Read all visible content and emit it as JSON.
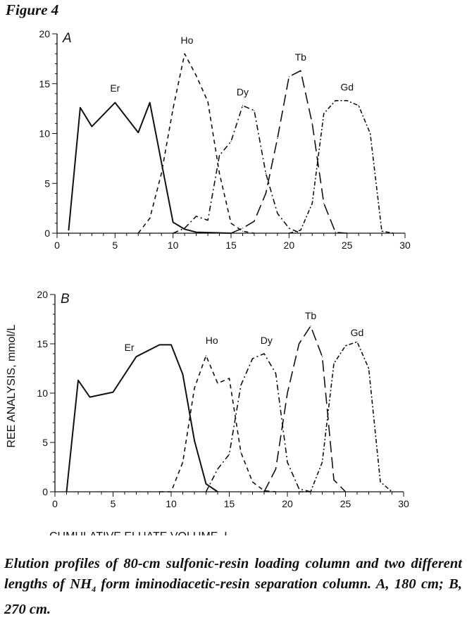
{
  "figure_title": "Figure 4",
  "caption": {
    "part1": "Elution profiles of 80-cm sulfonic-resin loading column and two different lengths of NH",
    "subscript": "4",
    "part2": " form iminodiacetic-resin separation column.  A, 180 cm; B, 270 cm."
  },
  "chart_data": [
    {
      "type": "line",
      "panel_label": "A",
      "xlabel": "",
      "ylabel": "",
      "xlim": [
        0,
        30
      ],
      "ylim": [
        0,
        20
      ],
      "xticks": [
        0,
        5,
        10,
        15,
        20,
        25,
        30
      ],
      "yticks": [
        0,
        5,
        10,
        15,
        20
      ],
      "grid": false,
      "series": [
        {
          "name": "Er",
          "style": "solid",
          "label_at": [
            5,
            14.2
          ],
          "x": [
            1,
            2,
            3,
            5,
            7,
            8,
            10,
            11,
            12,
            15
          ],
          "y": [
            0.3,
            12.6,
            10.7,
            13.1,
            10.1,
            13.1,
            1.1,
            0.4,
            0.1,
            0
          ]
        },
        {
          "name": "Ho",
          "style": "dash",
          "label_at": [
            11.2,
            19
          ],
          "x": [
            7,
            8,
            9,
            10,
            11,
            12,
            13,
            14,
            15,
            16,
            17
          ],
          "y": [
            0,
            1.5,
            6,
            12.5,
            18,
            15.8,
            13.2,
            6,
            1,
            0.2,
            0
          ]
        },
        {
          "name": "Dy",
          "style": "dashdot",
          "label_at": [
            16,
            13.8
          ],
          "x": [
            10,
            11,
            12,
            13,
            14,
            15,
            16,
            17,
            18,
            19,
            20,
            21
          ],
          "y": [
            0,
            0.5,
            1.7,
            1.3,
            7.8,
            9.2,
            12.8,
            12.3,
            6,
            2,
            0.5,
            0
          ]
        },
        {
          "name": "Tb",
          "style": "longdash",
          "label_at": [
            21,
            17.3
          ],
          "x": [
            15,
            16,
            17,
            18,
            19,
            20,
            21,
            22,
            23,
            24,
            25
          ],
          "y": [
            0,
            0.5,
            1.2,
            4,
            9.5,
            15.7,
            16.3,
            11,
            3,
            0.1,
            0
          ]
        },
        {
          "name": "Gd",
          "style": "dashdot2",
          "label_at": [
            25,
            14.3
          ],
          "x": [
            20,
            21,
            22,
            23,
            24,
            25,
            26,
            27,
            28,
            29
          ],
          "y": [
            0,
            0.3,
            3,
            12,
            13.3,
            13.3,
            12.8,
            10,
            0.2,
            0
          ]
        }
      ]
    },
    {
      "type": "line",
      "panel_label": "B",
      "xlabel": "CUMULATIVE ELUATE VOLUME, L",
      "ylabel": "REE ANALYSIS, mmol/L",
      "xlim": [
        0,
        30
      ],
      "ylim": [
        0,
        20
      ],
      "xticks": [
        0,
        5,
        10,
        15,
        20,
        25,
        30
      ],
      "yticks": [
        0,
        5,
        10,
        15,
        20
      ],
      "grid": false,
      "series": [
        {
          "name": "Er",
          "style": "solid",
          "label_at": [
            6.4,
            14.3
          ],
          "x": [
            1,
            2,
            3,
            5,
            7,
            9,
            10,
            11,
            12,
            13,
            14
          ],
          "y": [
            0,
            11.3,
            9.6,
            10.1,
            13.7,
            14.9,
            14.9,
            11.9,
            5.2,
            0.8,
            0
          ]
        },
        {
          "name": "Ho",
          "style": "dash",
          "label_at": [
            13.5,
            15
          ],
          "x": [
            9,
            10,
            11,
            12,
            13,
            14,
            15,
            16,
            17,
            18,
            19
          ],
          "y": [
            0,
            0,
            3,
            10.5,
            13.8,
            11,
            11.5,
            4,
            1,
            0.1,
            0
          ]
        },
        {
          "name": "Dy",
          "style": "dashdot",
          "label_at": [
            18.2,
            15
          ]
        },
        {
          "name": "Tb",
          "style": "longdash",
          "label_at": [
            22,
            17.5
          ],
          "x": [
            18,
            19,
            20,
            21,
            22,
            23,
            24,
            25
          ],
          "y": [
            0,
            2.3,
            10,
            15,
            16.8,
            13.7,
            1.2,
            0
          ]
        },
        {
          "name": "Gd",
          "style": "dashdot2",
          "label_at": [
            26,
            15.8
          ],
          "x": [
            21,
            22,
            23,
            24,
            25,
            26,
            27,
            28,
            29
          ],
          "y": [
            0,
            0,
            3,
            13,
            14.8,
            15.2,
            12.5,
            1,
            0
          ]
        }
      ]
    }
  ]
}
